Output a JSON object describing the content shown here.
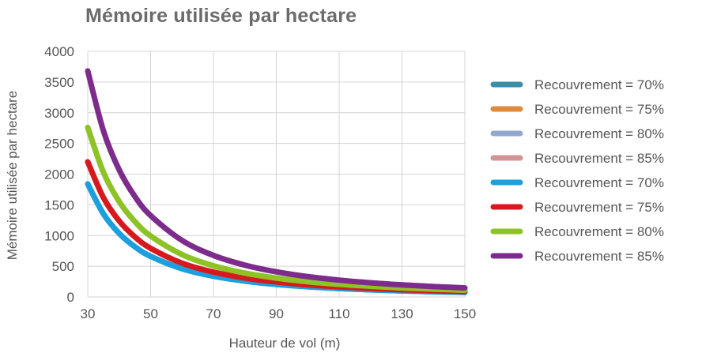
{
  "chart_data": {
    "type": "line",
    "title": "Mémoire utilisée par hectare",
    "xlabel": "Hauteur de vol (m)",
    "ylabel": "Mémoire utilisée par hectare",
    "xlim": [
      30,
      150
    ],
    "ylim": [
      0,
      4000
    ],
    "x_ticks": [
      "30",
      "50",
      "70",
      "90",
      "110",
      "130",
      "150"
    ],
    "y_ticks": [
      "0",
      "500",
      "1000",
      "1500",
      "2000",
      "2500",
      "3000",
      "3500",
      "4000"
    ],
    "grid": true,
    "legend_position": "right",
    "x": [
      30,
      35,
      40,
      45,
      50,
      60,
      70,
      80,
      90,
      100,
      110,
      120,
      130,
      140,
      150
    ],
    "series": [
      {
        "name": "Recouvrement = 70%",
        "color": "#3a8ea6",
        "values": [
          1840,
          1352,
          1035,
          818,
          662,
          460,
          338,
          259,
          204,
          166,
          137,
          115,
          98,
          84,
          74
        ]
      },
      {
        "name": "Recouvrement = 75%",
        "color": "#e08a3c",
        "values": [
          2200,
          1616,
          1238,
          978,
          792,
          550,
          404,
          309,
          244,
          198,
          164,
          138,
          117,
          101,
          88
        ]
      },
      {
        "name": "Recouvrement = 80%",
        "color": "#93a8cf",
        "values": [
          2760,
          2028,
          1553,
          1227,
          994,
          690,
          507,
          388,
          307,
          248,
          205,
          173,
          147,
          127,
          110
        ]
      },
      {
        "name": "Recouvrement = 85%",
        "color": "#d39494",
        "values": [
          3680,
          2704,
          2070,
          1636,
          1325,
          920,
          676,
          518,
          409,
          331,
          274,
          230,
          196,
          169,
          147
        ]
      },
      {
        "name": "Recouvrement = 70%",
        "color": "#1ba0dd",
        "values": [
          1840,
          1352,
          1035,
          818,
          662,
          460,
          338,
          259,
          204,
          166,
          137,
          115,
          98,
          84,
          74
        ]
      },
      {
        "name": "Recouvrement = 75%",
        "color": "#d7191f",
        "values": [
          2200,
          1616,
          1238,
          978,
          792,
          550,
          404,
          309,
          244,
          198,
          164,
          138,
          117,
          101,
          88
        ]
      },
      {
        "name": "Recouvrement = 80%",
        "color": "#8ec324",
        "values": [
          2760,
          2028,
          1553,
          1227,
          994,
          690,
          507,
          388,
          307,
          248,
          205,
          173,
          147,
          127,
          110
        ]
      },
      {
        "name": "Recouvrement = 85%",
        "color": "#7d2c8d",
        "values": [
          3680,
          2704,
          2070,
          1636,
          1325,
          920,
          676,
          518,
          409,
          331,
          274,
          230,
          196,
          169,
          147
        ]
      }
    ]
  }
}
